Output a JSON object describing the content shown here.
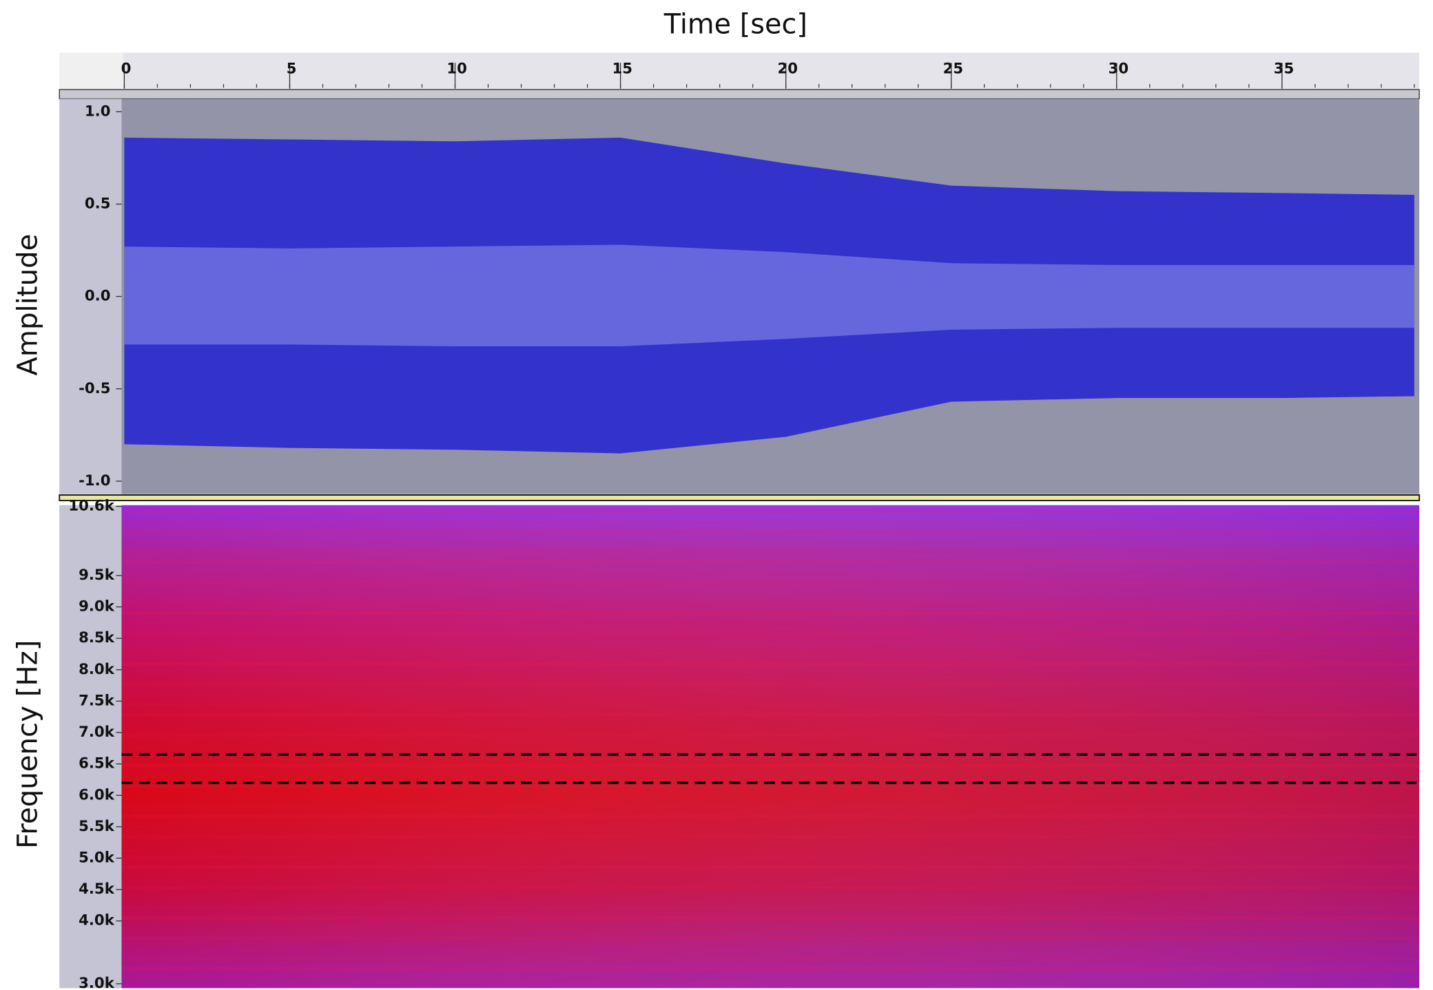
{
  "chart_data": [
    {
      "type": "waveform",
      "x_label": "Time [sec]",
      "y_label": "Amplitude",
      "xlim": [
        0,
        39.15
      ],
      "xticks": [
        0,
        5,
        10,
        15,
        20,
        25,
        30,
        35
      ],
      "ylim": [
        -1.07,
        1.07
      ],
      "yticks": [
        {
          "value": 1,
          "label": "1.0"
        },
        {
          "value": 0.5,
          "label": "0.5"
        },
        {
          "value": 0,
          "label": "0.0"
        },
        {
          "value": -0.5,
          "label": "-0.5"
        },
        {
          "value": -1,
          "label": "-1.0"
        }
      ],
      "color": "#3333cc",
      "rms_color": "#6666dd",
      "waveform": {
        "times": [
          0,
          5,
          10,
          15,
          20,
          25,
          30,
          35,
          39
        ],
        "peak_top": [
          0.86,
          0.85,
          0.84,
          0.86,
          0.72,
          0.6,
          0.57,
          0.56,
          0.55
        ],
        "peak_bottom": [
          -0.8,
          -0.82,
          -0.83,
          -0.85,
          -0.76,
          -0.57,
          -0.55,
          -0.55,
          -0.54
        ],
        "rms_top": [
          0.27,
          0.26,
          0.27,
          0.28,
          0.24,
          0.18,
          0.17,
          0.17,
          0.17
        ],
        "rms_bottom": [
          -0.26,
          -0.26,
          -0.27,
          -0.27,
          -0.23,
          -0.18,
          -0.17,
          -0.17,
          -0.17
        ]
      }
    },
    {
      "type": "spectrogram",
      "y_label": "Frequency [Hz]",
      "ylim": [
        2930,
        10620
      ],
      "yticks": [
        {
          "value": 10600,
          "label": "10.6k"
        },
        {
          "value": 9500,
          "label": "9.5k"
        },
        {
          "value": 9000,
          "label": "9.0k"
        },
        {
          "value": 8500,
          "label": "8.5k"
        },
        {
          "value": 8000,
          "label": "8.0k"
        },
        {
          "value": 7500,
          "label": "7.5k"
        },
        {
          "value": 7000,
          "label": "7.0k"
        },
        {
          "value": 6500,
          "label": "6.5k"
        },
        {
          "value": 6000,
          "label": "6.0k"
        },
        {
          "value": 5500,
          "label": "5.5k"
        },
        {
          "value": 5000,
          "label": "5.0k"
        },
        {
          "value": 4500,
          "label": "4.5k"
        },
        {
          "value": 4000,
          "label": "4.0k"
        },
        {
          "value": 3000,
          "label": "3.0k"
        }
      ],
      "band_lines": [
        6650,
        6200
      ]
    }
  ]
}
